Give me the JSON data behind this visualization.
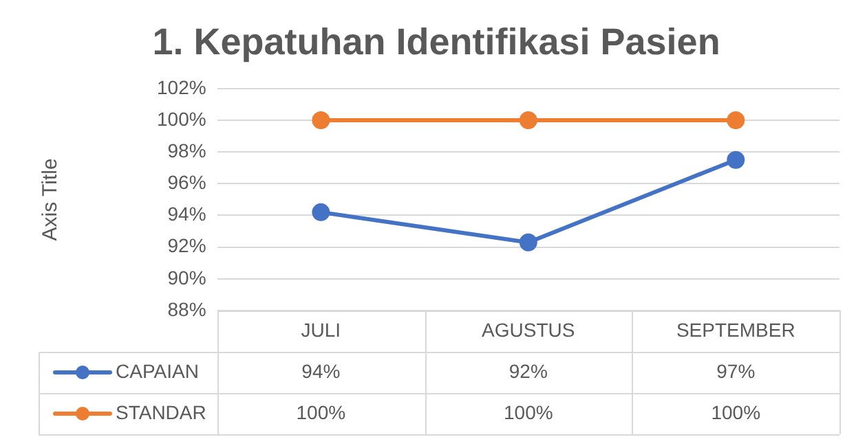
{
  "chart_data": {
    "type": "line",
    "title": "1. Kepatuhan Identifikasi Pasien",
    "ylabel": "Axis Title",
    "categories": [
      "JULI",
      "AGUSTUS",
      "SEPTEMBER"
    ],
    "series": [
      {
        "name": "CAPAIAN",
        "color": "#4472c4",
        "values": [
          94.2,
          92.3,
          97.5
        ],
        "value_labels": [
          "94%",
          "92%",
          "97%"
        ]
      },
      {
        "name": "STANDAR",
        "color": "#ed7d31",
        "values": [
          100,
          100,
          100
        ],
        "value_labels": [
          "100%",
          "100%",
          "100%"
        ]
      }
    ],
    "ylim": [
      88,
      102
    ],
    "yticks": [
      {
        "value": 88,
        "label": "88%"
      },
      {
        "value": 90,
        "label": "90%"
      },
      {
        "value": 92,
        "label": "92%"
      },
      {
        "value": 94,
        "label": "94%"
      },
      {
        "value": 96,
        "label": "96%"
      },
      {
        "value": 98,
        "label": "98%"
      },
      {
        "value": 100,
        "label": "100%"
      },
      {
        "value": 102,
        "label": "102%"
      }
    ],
    "grid": "y",
    "legend": "bottom",
    "marker": "circle",
    "line_style": "solid"
  }
}
